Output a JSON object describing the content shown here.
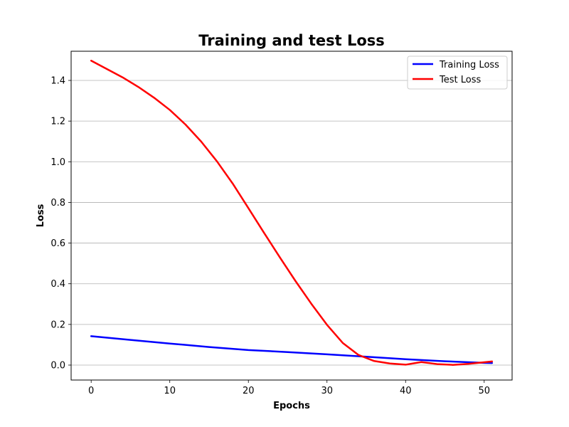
{
  "chart_data": {
    "type": "line",
    "title": "Training and test Loss",
    "xlabel": "Epochs",
    "ylabel": "Loss",
    "xlim": [
      -2.55,
      53.55
    ],
    "ylim": [
      -0.0735,
      1.5435
    ],
    "xticks": [
      0,
      10,
      20,
      30,
      40,
      50
    ],
    "yticks": [
      0.0,
      0.2,
      0.4,
      0.6,
      0.8,
      1.0,
      1.2,
      1.4
    ],
    "ytick_labels": [
      "0.0",
      "0.2",
      "0.4",
      "0.6",
      "0.8",
      "1.0",
      "1.2",
      "1.4"
    ],
    "grid": "horizontal",
    "legend": "top-right",
    "series": [
      {
        "name": "Training Loss",
        "color": "#0000ff",
        "x": [
          0,
          5,
          10,
          15,
          20,
          25,
          30,
          35,
          40,
          45,
          50,
          51
        ],
        "values": [
          0.142,
          0.124,
          0.106,
          0.089,
          0.074,
          0.064,
          0.053,
          0.041,
          0.029,
          0.019,
          0.011,
          0.01
        ]
      },
      {
        "name": "Test Loss",
        "color": "#ff0000",
        "x": [
          0,
          2,
          4,
          6,
          8,
          10,
          12,
          14,
          16,
          18,
          20,
          22,
          24,
          26,
          28,
          30,
          32,
          34,
          36,
          38,
          40,
          42,
          44,
          46,
          48,
          50,
          51
        ],
        "values": [
          1.497,
          1.456,
          1.415,
          1.368,
          1.315,
          1.255,
          1.183,
          1.099,
          1.002,
          0.893,
          0.772,
          0.65,
          0.53,
          0.413,
          0.302,
          0.198,
          0.109,
          0.05,
          0.02,
          0.008,
          0.002,
          0.015,
          0.005,
          0.001,
          0.006,
          0.014,
          0.018
        ]
      }
    ]
  }
}
